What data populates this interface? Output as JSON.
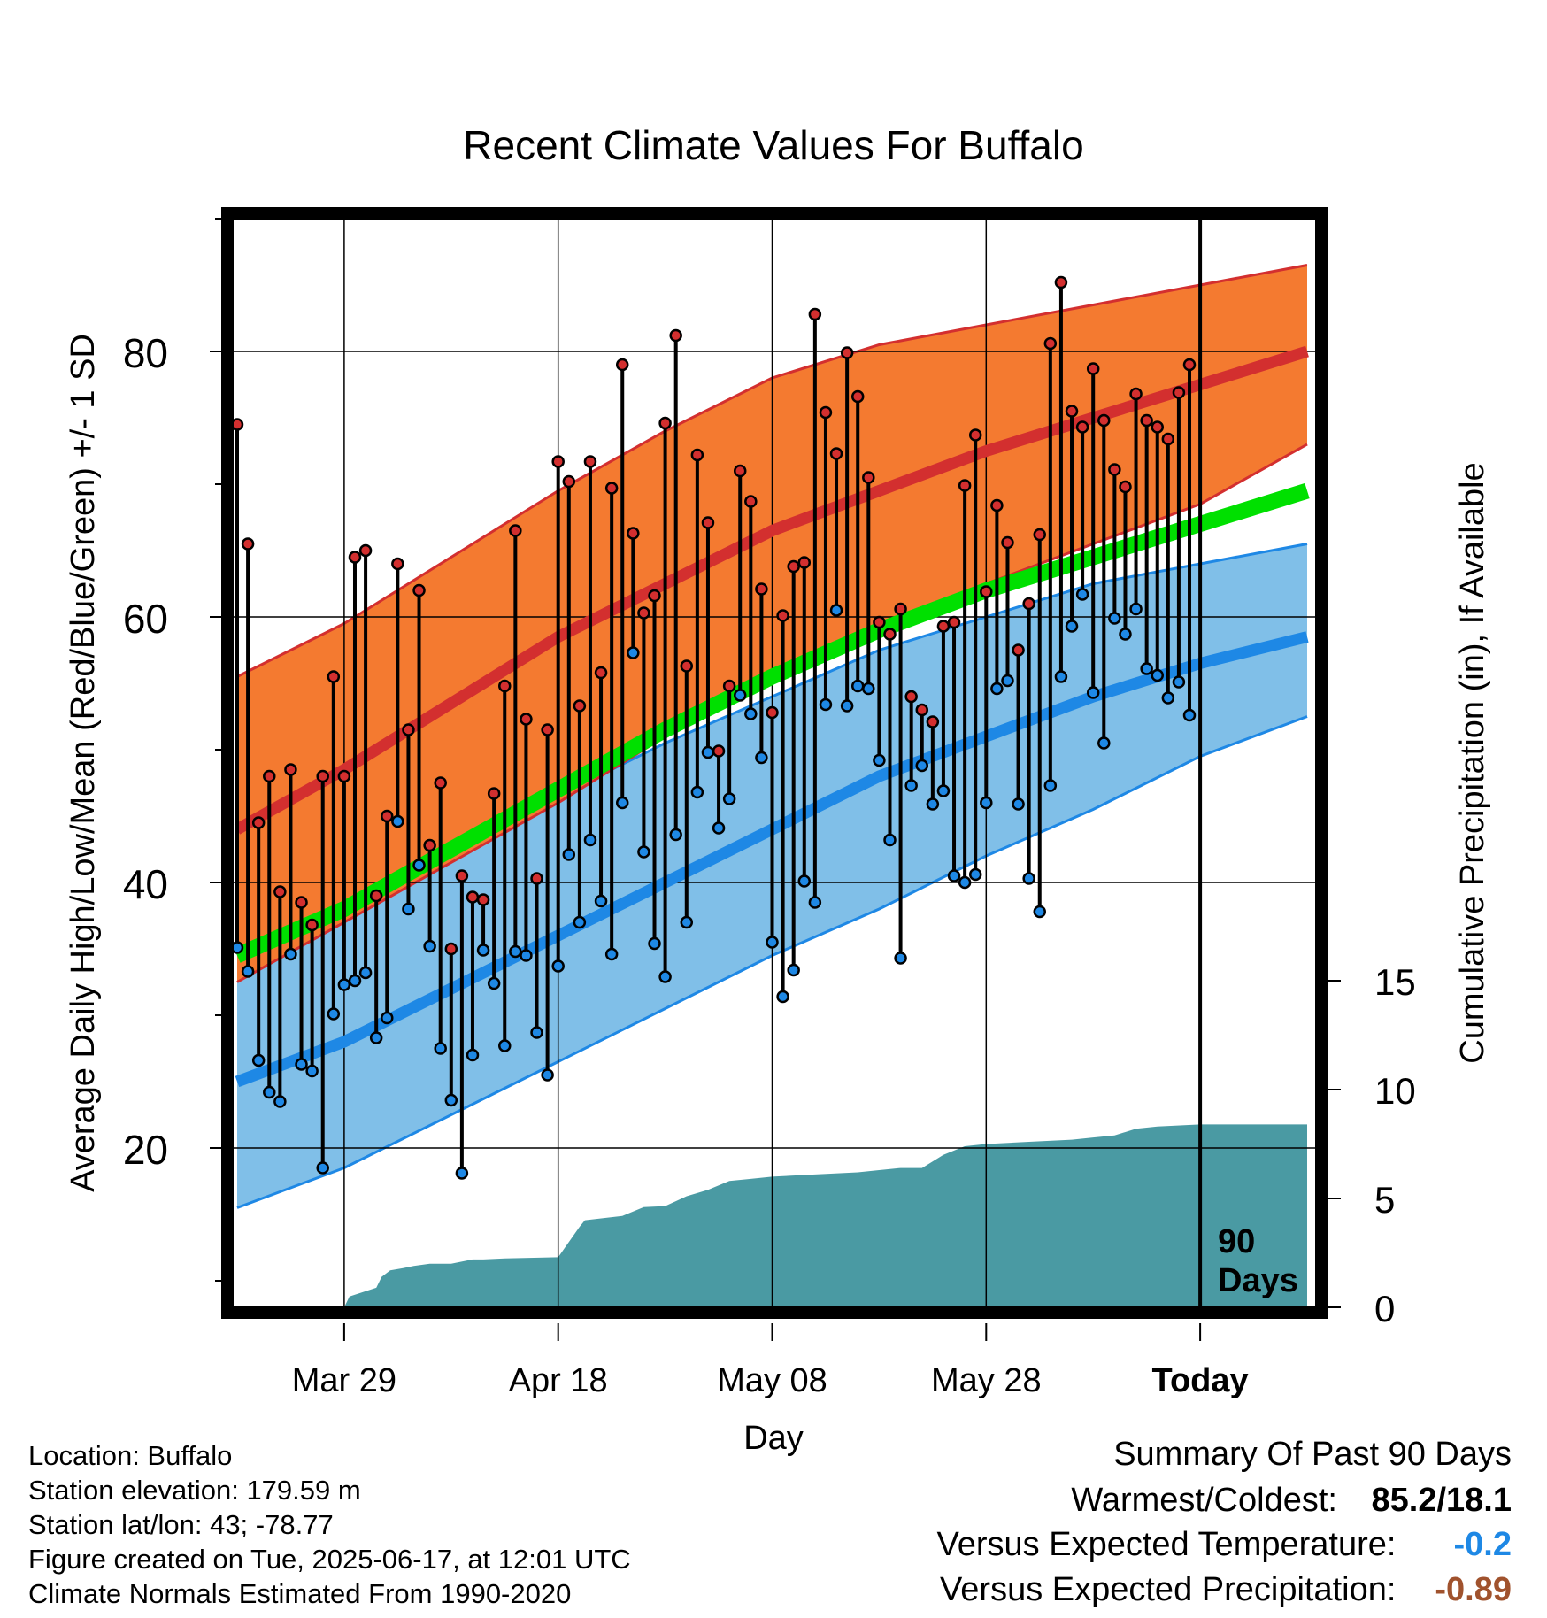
{
  "footer": {
    "location": "Location: Buffalo",
    "elevation": "Station elevation: 179.59 m",
    "latlon": "Station lat/lon: 43; -78.77",
    "created": "Figure created on Tue, 2025-06-17, at 12:01 UTC",
    "normals": "Climate Normals Estimated From 1990-2020"
  },
  "summary": {
    "title": "Summary Of Past 90 Days",
    "warm_cold_label": "Warmest/Coldest:",
    "warm_cold_value": "85.2/18.1",
    "temp_label": "Versus Expected Temperature:",
    "temp_value": "-0.2",
    "temp_color": "#1e88e5",
    "precip_label": "Versus Expected Precipitation:",
    "precip_value": "-0.89",
    "precip_color": "#a0522d"
  },
  "chart_data": {
    "type": "line",
    "title": "Recent Climate Values For Buffalo",
    "xlabel": "Day",
    "ylabel": "Average Daily High/Low/Mean (Red/Blue/Green) +/- 1 SD",
    "y2label": "Cumulative Precipitation (in), If Available",
    "xlim": [
      -10,
      90
    ],
    "ylim": [
      8,
      90
    ],
    "y2lim": [
      0,
      50
    ],
    "x_ticks": [
      {
        "x": 0,
        "label": "Mar 29"
      },
      {
        "x": 20,
        "label": "Apr 18"
      },
      {
        "x": 40,
        "label": "May 08"
      },
      {
        "x": 60,
        "label": "May 28"
      },
      {
        "x": 80,
        "label": "Today"
      }
    ],
    "y_ticks": [
      20,
      40,
      60,
      80
    ],
    "y2_ticks": [
      0,
      5,
      10,
      15
    ],
    "today_x": 80,
    "today_label": [
      "90",
      "Days"
    ],
    "grid": true,
    "colors": {
      "high": "#d32f2f",
      "high_band": "#f47a30",
      "low": "#1e88e5",
      "low_band": "#80bfe8",
      "mean": "#00e000",
      "precip": "#4a9aa3",
      "frame": "#000000"
    },
    "normals": {
      "x": [
        -10,
        0,
        10,
        20,
        30,
        40,
        50,
        60,
        70,
        80,
        90
      ],
      "high_mean": [
        44.0,
        48.5,
        53.5,
        58.5,
        62.5,
        66.5,
        69.5,
        72.5,
        75.0,
        77.5,
        80.0
      ],
      "high_upper": [
        55.5,
        59.5,
        64.5,
        69.5,
        74.0,
        78.0,
        80.5,
        82.0,
        83.5,
        85.0,
        86.5
      ],
      "high_lower": [
        32.5,
        37.0,
        41.5,
        46.0,
        51.0,
        55.0,
        58.5,
        62.5,
        65.5,
        68.5,
        73.0
      ],
      "low_mean": [
        25.0,
        28.0,
        32.0,
        36.0,
        40.0,
        44.0,
        48.0,
        51.0,
        54.0,
        56.5,
        58.5
      ],
      "low_upper": [
        34.5,
        38.0,
        42.5,
        46.5,
        50.5,
        54.0,
        57.5,
        60.0,
        62.5,
        64.0,
        65.5
      ],
      "low_lower": [
        15.5,
        18.5,
        22.5,
        26.5,
        30.5,
        34.5,
        38.0,
        42.0,
        45.5,
        49.5,
        52.5
      ],
      "avg_mean": [
        34.5,
        38.0,
        42.5,
        47.0,
        51.5,
        55.5,
        59.0,
        62.0,
        64.5,
        67.0,
        69.5
      ]
    },
    "series": [
      {
        "name": "High",
        "values": [
          74.5,
          65.5,
          44.5,
          48.0,
          39.3,
          48.5,
          38.5,
          36.8,
          48.0,
          55.5,
          48.0,
          64.5,
          65.0,
          39.0,
          45.0,
          64.0,
          51.5,
          62.0,
          42.8,
          47.5,
          35.0,
          40.5,
          38.9,
          38.7,
          46.7,
          54.8,
          66.5,
          52.3,
          40.3,
          51.5,
          71.7,
          70.2,
          53.3,
          71.7,
          55.8,
          69.7,
          79.0,
          66.3,
          60.3,
          61.6,
          74.6,
          81.2,
          56.3,
          72.2,
          67.1,
          49.9,
          54.8,
          71.0,
          68.7,
          62.1,
          52.8,
          60.1,
          63.8,
          64.1,
          82.8,
          75.4,
          72.3,
          79.9,
          76.6,
          70.5,
          59.6,
          58.7,
          60.6,
          54.0,
          53.0,
          52.1,
          59.3,
          59.6,
          69.9,
          73.7,
          61.9,
          68.4,
          65.6,
          57.5,
          61.0,
          66.2,
          80.6,
          85.2,
          75.5,
          74.3,
          78.7,
          74.8,
          71.1,
          69.8,
          76.8,
          74.8,
          74.3,
          73.4,
          76.9,
          79.0
        ]
      },
      {
        "name": "Low",
        "values": [
          35.1,
          33.3,
          26.6,
          24.2,
          23.5,
          34.6,
          26.3,
          25.8,
          18.5,
          30.1,
          32.3,
          32.6,
          33.2,
          28.3,
          29.8,
          44.6,
          38.0,
          41.3,
          35.2,
          27.5,
          23.6,
          18.1,
          27.0,
          34.9,
          32.4,
          27.7,
          34.8,
          34.5,
          28.7,
          25.5,
          33.7,
          42.1,
          37.0,
          43.2,
          38.6,
          34.6,
          46.0,
          57.3,
          42.3,
          35.4,
          32.9,
          43.6,
          37.0,
          46.8,
          49.8,
          44.1,
          46.3,
          54.1,
          52.7,
          49.4,
          35.5,
          31.4,
          33.4,
          40.1,
          38.5,
          53.4,
          60.5,
          53.3,
          54.8,
          54.6,
          49.2,
          43.2,
          34.3,
          47.3,
          48.8,
          45.9,
          46.9,
          40.5,
          40.0,
          40.6,
          46.0,
          54.6,
          55.2,
          45.9,
          40.3,
          37.8,
          47.3,
          55.5,
          59.3,
          61.7,
          54.3,
          50.5,
          59.9,
          58.7,
          60.6,
          56.1,
          55.6,
          53.9,
          55.1,
          52.6
        ]
      }
    ],
    "precip": {
      "x": [
        -10,
        -2,
        0,
        0.5,
        3,
        3.5,
        4.3,
        5.5,
        6.5,
        8,
        10,
        12,
        13,
        15,
        20,
        22,
        22.5,
        26,
        28,
        30,
        32,
        34,
        36,
        38,
        40,
        44,
        48,
        50,
        52,
        54,
        56,
        58,
        60,
        64,
        68,
        70,
        72,
        74,
        76,
        80,
        90
      ],
      "y": [
        0,
        0,
        0,
        0.5,
        0.9,
        1.4,
        1.7,
        1.8,
        1.9,
        2.0,
        2.0,
        2.2,
        2.2,
        2.25,
        2.3,
        3.7,
        4.0,
        4.2,
        4.6,
        4.65,
        5.1,
        5.4,
        5.8,
        5.9,
        6.0,
        6.1,
        6.2,
        6.3,
        6.4,
        6.4,
        7.0,
        7.4,
        7.5,
        7.6,
        7.7,
        7.8,
        7.9,
        8.2,
        8.3,
        8.4,
        8.4
      ]
    }
  }
}
